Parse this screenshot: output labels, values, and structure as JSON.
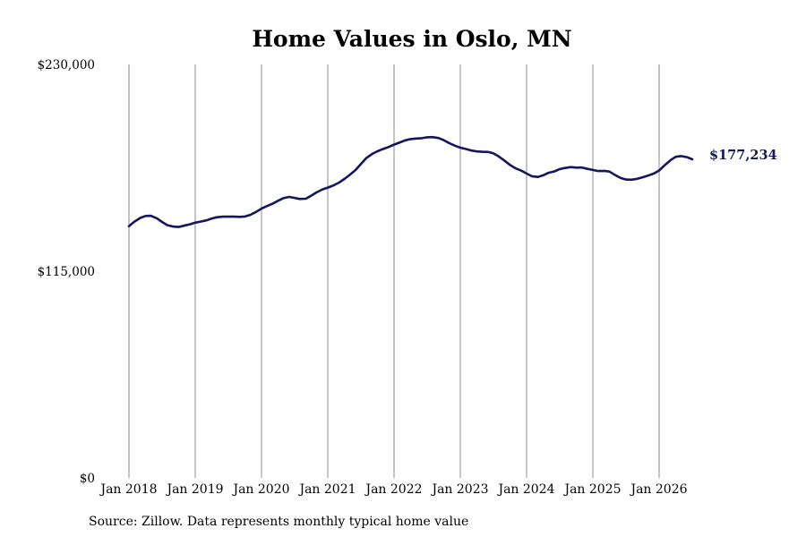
{
  "colors": {
    "line": "#16165c",
    "grid": "#8c8c8c",
    "text": "#000000"
  },
  "footer": {
    "source": "Source: Zillow. Data represents monthly typical home value"
  },
  "chart_data": {
    "type": "line",
    "title": "Home Values in Oslo, MN",
    "xlabel": "",
    "ylabel": "",
    "ylim": [
      0,
      230000
    ],
    "yticks": [
      {
        "value": 0,
        "label": "$0"
      },
      {
        "value": 115000,
        "label": "$115,000"
      },
      {
        "value": 230000,
        "label": "$230,000"
      }
    ],
    "xlim": [
      2018.0,
      2026.5
    ],
    "xticks": [
      {
        "value": 2018,
        "label": "Jan 2018"
      },
      {
        "value": 2019,
        "label": "Jan 2019"
      },
      {
        "value": 2020,
        "label": "Jan 2020"
      },
      {
        "value": 2021,
        "label": "Jan 2021"
      },
      {
        "value": 2022,
        "label": "Jan 2022"
      },
      {
        "value": 2023,
        "label": "Jan 2023"
      },
      {
        "value": 2024,
        "label": "Jan 2024"
      },
      {
        "value": 2025,
        "label": "Jan 2025"
      },
      {
        "value": 2026,
        "label": "Jan 2026"
      }
    ],
    "grid": {
      "vertical": true,
      "horizontal": false
    },
    "end_label": "$177,234",
    "series": [
      {
        "x": [
          2018.0,
          2018.08,
          2018.17,
          2018.25,
          2018.33,
          2018.42,
          2018.5,
          2018.58,
          2018.67,
          2018.75,
          2018.83,
          2018.92,
          2019.0,
          2019.08,
          2019.17,
          2019.25,
          2019.33,
          2019.42,
          2019.5,
          2019.58,
          2019.67,
          2019.75,
          2019.83,
          2019.92,
          2020.0,
          2020.08,
          2020.17,
          2020.25,
          2020.33,
          2020.42,
          2020.5,
          2020.58,
          2020.67,
          2020.75,
          2020.83,
          2020.92,
          2021.0,
          2021.08,
          2021.17,
          2021.25,
          2021.33,
          2021.42,
          2021.5,
          2021.58,
          2021.67,
          2021.75,
          2021.83,
          2021.92,
          2022.0,
          2022.08,
          2022.17,
          2022.25,
          2022.33,
          2022.42,
          2022.5,
          2022.58,
          2022.67,
          2022.75,
          2022.83,
          2022.92,
          2023.0,
          2023.08,
          2023.17,
          2023.25,
          2023.33,
          2023.42,
          2023.5,
          2023.58,
          2023.67,
          2023.75,
          2023.83,
          2023.92,
          2024.0,
          2024.08,
          2024.17,
          2024.25,
          2024.33,
          2024.42,
          2024.5,
          2024.58,
          2024.67,
          2024.75,
          2024.83,
          2024.92,
          2025.0,
          2025.08,
          2025.17,
          2025.25,
          2025.33,
          2025.42,
          2025.5,
          2025.58,
          2025.67,
          2025.75,
          2025.83,
          2025.92,
          2026.0,
          2026.08,
          2026.17,
          2026.25,
          2026.33,
          2026.42,
          2026.5
        ],
        "y": [
          140000,
          142500,
          144600,
          145700,
          145800,
          144400,
          142400,
          140600,
          139800,
          139600,
          140300,
          141100,
          142000,
          142600,
          143300,
          144300,
          145000,
          145300,
          145300,
          145300,
          145200,
          145400,
          146300,
          148000,
          149800,
          151200,
          152600,
          154200,
          155600,
          156300,
          155700,
          155200,
          155300,
          157000,
          158800,
          160500,
          161500,
          162600,
          164300,
          166300,
          168500,
          171300,
          174600,
          177900,
          180200,
          181700,
          182900,
          184100,
          185400,
          186500,
          187800,
          188500,
          188800,
          189000,
          189500,
          189600,
          189100,
          187900,
          186300,
          184800,
          183700,
          183000,
          182100,
          181600,
          181400,
          181300,
          180500,
          178800,
          176400,
          174100,
          172300,
          170900,
          169300,
          167800,
          167400,
          168300,
          169700,
          170500,
          171800,
          172400,
          172900,
          172600,
          172700,
          171900,
          171300,
          170700,
          170800,
          170400,
          168600,
          166800,
          166000,
          165900,
          166400,
          167200,
          168100,
          169300,
          171000,
          173800,
          176700,
          178600,
          179000,
          178400,
          177234
        ]
      }
    ]
  }
}
